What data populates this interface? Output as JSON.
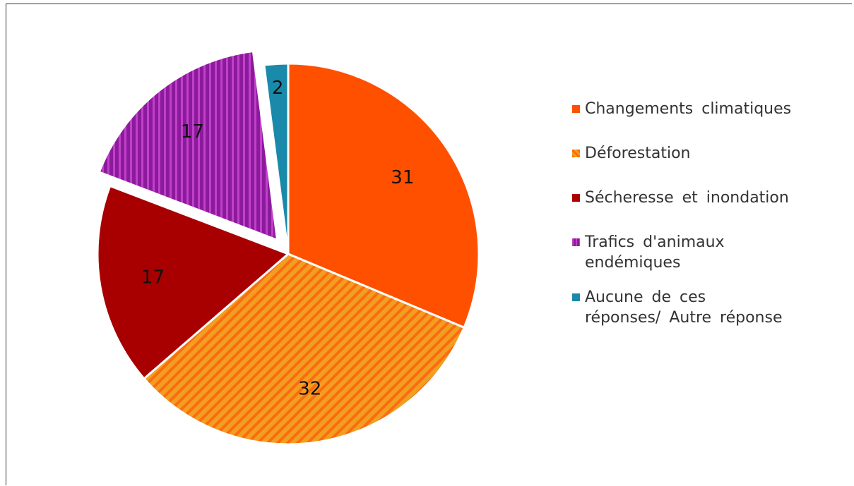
{
  "chart_data": {
    "type": "pie",
    "categories": [
      "Changements climatiques",
      "Déforestation",
      "Sécheresse et inondation",
      "Trafics d'animaux endémiques",
      "Aucune de ces réponses/ Autre réponse"
    ],
    "values": [
      31,
      32,
      17,
      17,
      2
    ],
    "colors": [
      "#ff5000",
      "#f0a020",
      "#a80000",
      "#8c1a9c",
      "#1a8aaa"
    ],
    "exploded": [
      false,
      false,
      false,
      true,
      false
    ],
    "legend": "right"
  }
}
